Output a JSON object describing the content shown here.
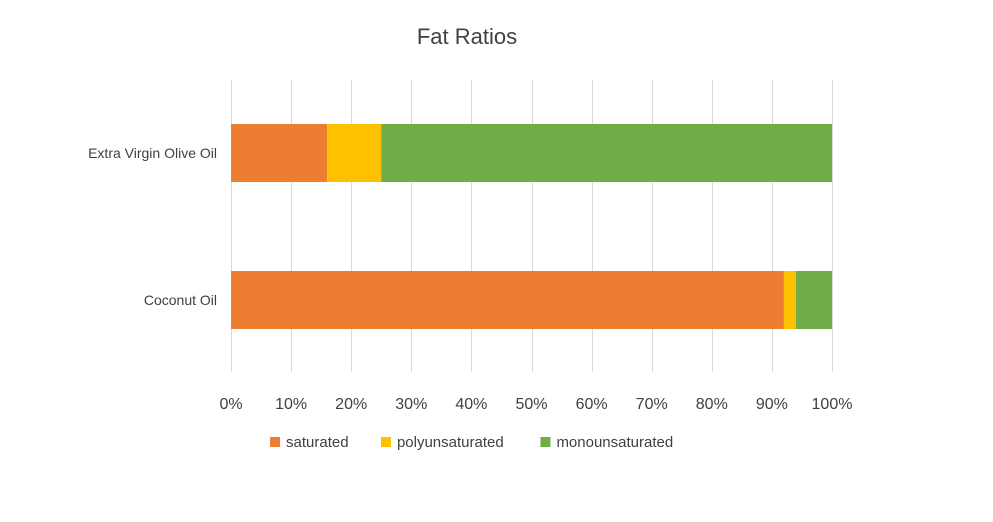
{
  "chart_data": {
    "type": "bar",
    "orientation": "horizontal",
    "stacked": "percent",
    "title": "Fat Ratios",
    "categories": [
      "Extra Virgin Olive Oil",
      "Coconut Oil"
    ],
    "series": [
      {
        "name": "saturated",
        "color": "#ED7D31",
        "values": [
          16,
          92
        ]
      },
      {
        "name": "polyunsaturated",
        "color": "#FFC000",
        "values": [
          9,
          2
        ]
      },
      {
        "name": "monounsaturated",
        "color": "#70AD47",
        "values": [
          75,
          6
        ]
      }
    ],
    "xlim": [
      0,
      100
    ],
    "xticks": [
      "0%",
      "10%",
      "20%",
      "30%",
      "40%",
      "50%",
      "60%",
      "70%",
      "80%",
      "90%",
      "100%"
    ],
    "grid": true,
    "legend": "bottom"
  }
}
